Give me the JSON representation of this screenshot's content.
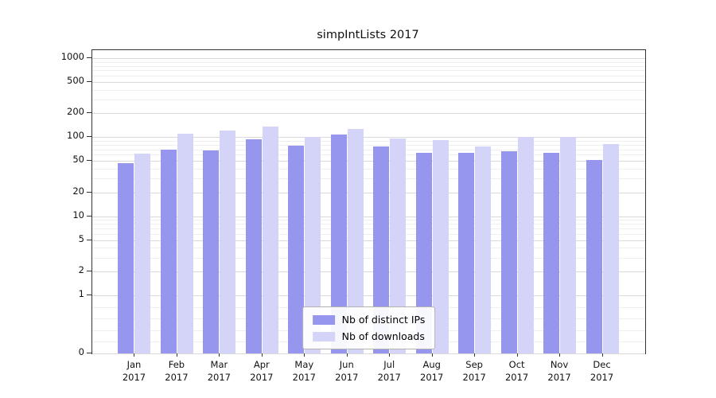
{
  "chart_data": {
    "type": "bar",
    "title": "simpIntLists 2017",
    "categories": [
      "Jan 2017",
      "Feb 2017",
      "Mar 2017",
      "Apr 2017",
      "May 2017",
      "Jun 2017",
      "Jul 2017",
      "Aug 2017",
      "Sep 2017",
      "Oct 2017",
      "Nov 2017",
      "Dec 2017"
    ],
    "series": [
      {
        "name": "Nb of distinct IPs",
        "color": "#9696ee",
        "values": [
          47,
          70,
          68,
          93,
          79,
          108,
          77,
          64,
          64,
          66,
          64,
          52
        ]
      },
      {
        "name": "Nb of downloads",
        "color": "#d4d4f8",
        "values": [
          62,
          110,
          122,
          135,
          100,
          128,
          97,
          92,
          76,
          100,
          100,
          82
        ]
      }
    ],
    "xlabel": "",
    "ylabel": "",
    "y_axis": {
      "scale": "symlog",
      "ticks": [
        0,
        1,
        2,
        5,
        10,
        20,
        50,
        100,
        200,
        500,
        1000
      ],
      "top_value": 1259
    },
    "grid": true,
    "legend_position": "lower center"
  },
  "colors": {
    "major_grid": "#d9d9d9",
    "minor_grid": "#efefef",
    "spine": "#333333"
  }
}
